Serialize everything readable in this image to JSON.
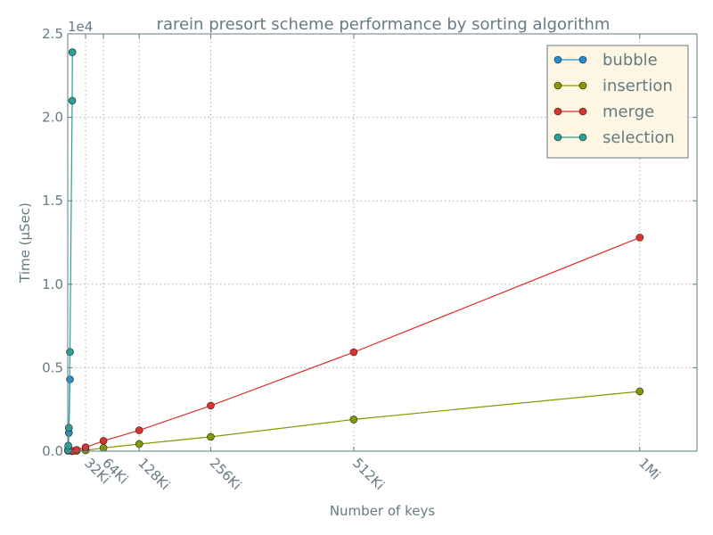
{
  "chart_data": {
    "type": "line",
    "title": "rarein presort scheme performance by sorting algorithm",
    "xlabel": "Number of keys",
    "ylabel": "Time (µSec)",
    "y_multiplier_label": "1e4",
    "xlim": [
      0,
      1153433
    ],
    "ylim": [
      0,
      25000
    ],
    "x_ticks": [
      {
        "value": 32768,
        "label": "32Ki"
      },
      {
        "value": 65536,
        "label": "64Ki"
      },
      {
        "value": 131072,
        "label": "128Ki"
      },
      {
        "value": 262144,
        "label": "256Ki"
      },
      {
        "value": 524288,
        "label": "512Ki"
      },
      {
        "value": 1048576,
        "label": "1Mi"
      }
    ],
    "y_ticks": [
      {
        "value": 0,
        "label": "0.0"
      },
      {
        "value": 5000,
        "label": "0.5"
      },
      {
        "value": 10000,
        "label": "1.0"
      },
      {
        "value": 15000,
        "label": "1.5"
      },
      {
        "value": 20000,
        "label": "2.0"
      },
      {
        "value": 25000,
        "label": "2.5"
      }
    ],
    "grid": true,
    "legend_position": "top-right",
    "series": [
      {
        "name": "bubble",
        "color": "#268bd2",
        "points": [
          [
            512,
            30
          ],
          [
            1024,
            120
          ],
          [
            2048,
            1100
          ],
          [
            4096,
            4300
          ]
        ]
      },
      {
        "name": "insertion",
        "color": "#859900",
        "points": [
          [
            8192,
            5
          ],
          [
            16384,
            20
          ],
          [
            32768,
            50
          ],
          [
            65536,
            200
          ],
          [
            131072,
            430
          ],
          [
            262144,
            860
          ],
          [
            524288,
            1900
          ],
          [
            1048576,
            3580
          ]
        ]
      },
      {
        "name": "merge",
        "color": "#dc322f",
        "points": [
          [
            8192,
            20
          ],
          [
            16384,
            80
          ],
          [
            32768,
            230
          ],
          [
            65536,
            620
          ],
          [
            131072,
            1250
          ],
          [
            262144,
            2730
          ],
          [
            524288,
            5930
          ],
          [
            1048576,
            12800
          ]
        ]
      },
      {
        "name": "selection",
        "color": "#2aa198",
        "points": [
          [
            512,
            60
          ],
          [
            1024,
            330
          ],
          [
            2048,
            1400
          ],
          [
            4096,
            5950
          ],
          [
            8192,
            21000
          ],
          [
            8500,
            23900
          ]
        ]
      }
    ]
  }
}
